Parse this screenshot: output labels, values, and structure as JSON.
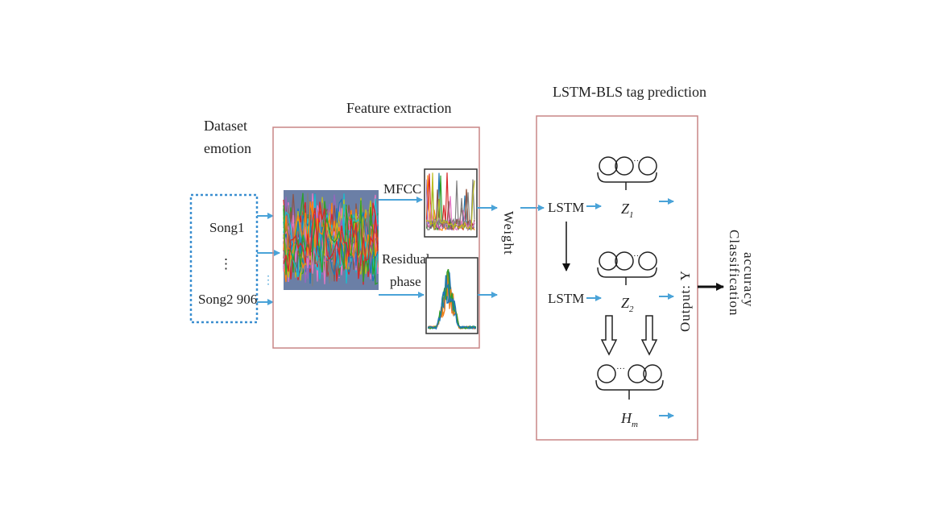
{
  "dataset": {
    "heading_line1": "Dataset",
    "heading_line2": "emotion",
    "song_first": "Song1",
    "song_ellipsis": "⋮",
    "song_last": "Song2 906",
    "side_dots": "⋮"
  },
  "feature_extraction": {
    "title": "Feature extraction",
    "mfcc_label": "MFCC",
    "residual_line1": "Residual",
    "residual_line2": "phase"
  },
  "weight_label": "Weight",
  "lstm_bls": {
    "title": "LSTM-BLS tag prediction",
    "lstm_top": "LSTM",
    "lstm_bottom": "LSTM",
    "z1_base": "Z",
    "z1_sub": "1",
    "z2_base": "Z",
    "z2_sub": "2",
    "hm_base": "H",
    "hm_sub": "m",
    "node_dots": "···"
  },
  "output_label": "Output: Y",
  "result": {
    "line1": "Classification",
    "line2": "accuracy"
  },
  "colors": {
    "panel_border": "#c98585",
    "arrow_blue": "#4aa3d8",
    "dashed_blue": "#3b8fd0",
    "orange": "#f07f1a"
  }
}
